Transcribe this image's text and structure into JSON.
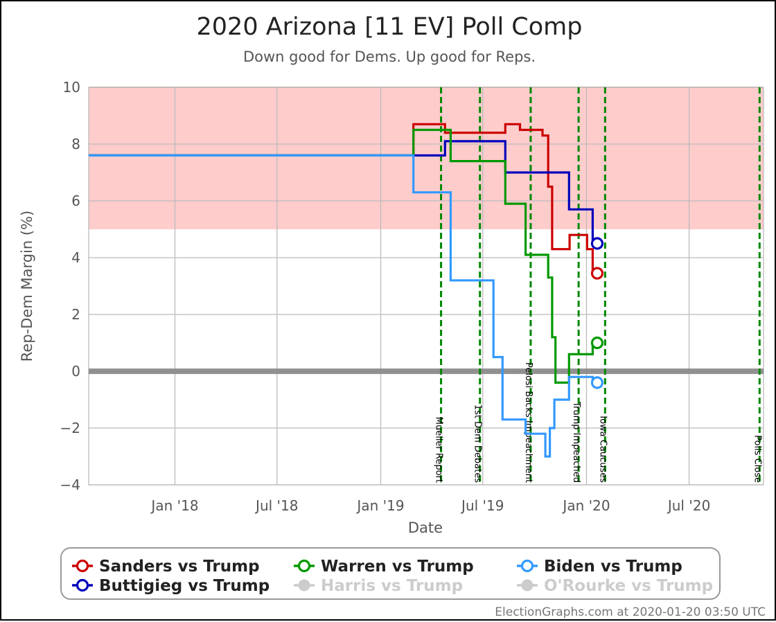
{
  "chart_data": {
    "type": "line",
    "title": "2020 Arizona [11 EV] Poll Comp",
    "subtitle": "Down good for Dems. Up good for Reps.",
    "xlabel": "Date",
    "ylabel": "Rep-Dem Margin (%)",
    "ylim": [
      -4,
      10
    ],
    "xlim": [
      "2017-08-01",
      "2020-11-10"
    ],
    "y_ticks": [
      "10",
      "8",
      "6",
      "4",
      "2",
      "0",
      "−2",
      "−4"
    ],
    "y_tick_values": [
      10,
      8,
      6,
      4,
      2,
      0,
      -2,
      -4
    ],
    "x_ticks": [
      {
        "label": "Jan '18",
        "date": "2018-01-01"
      },
      {
        "label": "Jul '18",
        "date": "2018-07-01"
      },
      {
        "label": "Jan '19",
        "date": "2019-01-01"
      },
      {
        "label": "Jul '19",
        "date": "2019-07-01"
      },
      {
        "label": "Jan '20",
        "date": "2020-01-01"
      },
      {
        "label": "Jul '20",
        "date": "2020-07-01"
      }
    ],
    "grid": true,
    "shaded_band": {
      "from": 5,
      "to": 10,
      "color": "#ffcccc",
      "border": "#e88"
    },
    "zero_line_color": "#888888",
    "events": [
      {
        "label": "Mueller Report",
        "date": "2019-04-18"
      },
      {
        "label": "1st Dem Debates",
        "date": "2019-06-26"
      },
      {
        "label": "Pelosi Backs Impeachment",
        "date": "2019-09-24"
      },
      {
        "label": "Trump Impeached",
        "date": "2019-12-18"
      },
      {
        "label": "Iowa Caucuses",
        "date": "2020-02-03"
      },
      {
        "label": "Polls Close",
        "date": "2020-11-03"
      }
    ],
    "series": [
      {
        "name": "Sanders vs Trump",
        "color": "#cc0000",
        "points": [
          [
            "2017-08-01",
            7.6
          ],
          [
            "2019-02-28",
            7.6
          ],
          [
            "2019-02-28",
            8.7
          ],
          [
            "2019-04-25",
            8.7
          ],
          [
            "2019-04-25",
            8.4
          ],
          [
            "2019-08-10",
            8.4
          ],
          [
            "2019-08-10",
            8.7
          ],
          [
            "2019-09-05",
            8.7
          ],
          [
            "2019-09-05",
            8.5
          ],
          [
            "2019-10-15",
            8.5
          ],
          [
            "2019-10-15",
            8.3
          ],
          [
            "2019-10-25",
            8.3
          ],
          [
            "2019-10-25",
            6.5
          ],
          [
            "2019-11-01",
            6.5
          ],
          [
            "2019-11-01",
            4.3
          ],
          [
            "2019-12-02",
            4.3
          ],
          [
            "2019-12-02",
            4.8
          ],
          [
            "2020-01-02",
            4.8
          ],
          [
            "2020-01-02",
            4.3
          ],
          [
            "2020-01-12",
            4.3
          ],
          [
            "2020-01-12",
            3.45
          ]
        ],
        "current": 3.45
      },
      {
        "name": "Buttigieg vs Trump",
        "color": "#0000bb",
        "points": [
          [
            "2017-08-01",
            7.6
          ],
          [
            "2019-04-25",
            7.6
          ],
          [
            "2019-04-25",
            8.1
          ],
          [
            "2019-08-10",
            8.1
          ],
          [
            "2019-08-10",
            7.0
          ],
          [
            "2019-12-01",
            7.0
          ],
          [
            "2019-12-01",
            5.7
          ],
          [
            "2020-01-12",
            5.7
          ],
          [
            "2020-01-12",
            4.5
          ]
        ],
        "current": 4.5
      },
      {
        "name": "Warren vs Trump",
        "color": "#009900",
        "points": [
          [
            "2017-08-01",
            7.6
          ],
          [
            "2019-02-28",
            7.6
          ],
          [
            "2019-02-28",
            8.5
          ],
          [
            "2019-05-05",
            8.5
          ],
          [
            "2019-05-05",
            7.4
          ],
          [
            "2019-08-10",
            7.4
          ],
          [
            "2019-08-10",
            5.9
          ],
          [
            "2019-09-15",
            5.9
          ],
          [
            "2019-09-15",
            4.1
          ],
          [
            "2019-10-25",
            4.1
          ],
          [
            "2019-10-25",
            3.3
          ],
          [
            "2019-11-01",
            3.3
          ],
          [
            "2019-11-01",
            1.2
          ],
          [
            "2019-11-07",
            1.2
          ],
          [
            "2019-11-07",
            -0.4
          ],
          [
            "2019-12-01",
            -0.4
          ],
          [
            "2019-12-01",
            0.6
          ],
          [
            "2020-01-12",
            0.6
          ],
          [
            "2020-01-12",
            1.0
          ]
        ],
        "current": 1.0
      },
      {
        "name": "Biden vs Trump",
        "color": "#3399ff",
        "points": [
          [
            "2017-08-01",
            7.6
          ],
          [
            "2019-02-28",
            7.6
          ],
          [
            "2019-02-28",
            6.3
          ],
          [
            "2019-05-05",
            6.3
          ],
          [
            "2019-05-05",
            3.2
          ],
          [
            "2019-07-20",
            3.2
          ],
          [
            "2019-07-20",
            0.5
          ],
          [
            "2019-08-05",
            0.5
          ],
          [
            "2019-08-05",
            -1.7
          ],
          [
            "2019-09-15",
            -1.7
          ],
          [
            "2019-09-15",
            -2.2
          ],
          [
            "2019-10-20",
            -2.2
          ],
          [
            "2019-10-20",
            -3.0
          ],
          [
            "2019-10-28",
            -3.0
          ],
          [
            "2019-10-28",
            -2.0
          ],
          [
            "2019-11-05",
            -2.0
          ],
          [
            "2019-11-05",
            -1.0
          ],
          [
            "2019-12-01",
            -1.0
          ],
          [
            "2019-12-01",
            -0.2
          ],
          [
            "2020-01-12",
            -0.2
          ],
          [
            "2020-01-12",
            -0.4
          ]
        ],
        "current": -0.4
      }
    ],
    "current_date": "2020-01-20",
    "legend_position": "bottom",
    "legend": [
      {
        "name": "Sanders vs Trump",
        "color": "#cc0000",
        "active": true
      },
      {
        "name": "Warren vs Trump",
        "color": "#009900",
        "active": true
      },
      {
        "name": "Biden vs Trump",
        "color": "#3399ff",
        "active": true
      },
      {
        "name": "Buttigieg vs Trump",
        "color": "#0000bb",
        "active": true
      },
      {
        "name": "Harris vs Trump",
        "color": "#cccccc",
        "active": false
      },
      {
        "name": "O'Rourke vs Trump",
        "color": "#cccccc",
        "active": false
      }
    ],
    "footer": "ElectionGraphs.com at 2020-01-20 03:50 UTC"
  }
}
